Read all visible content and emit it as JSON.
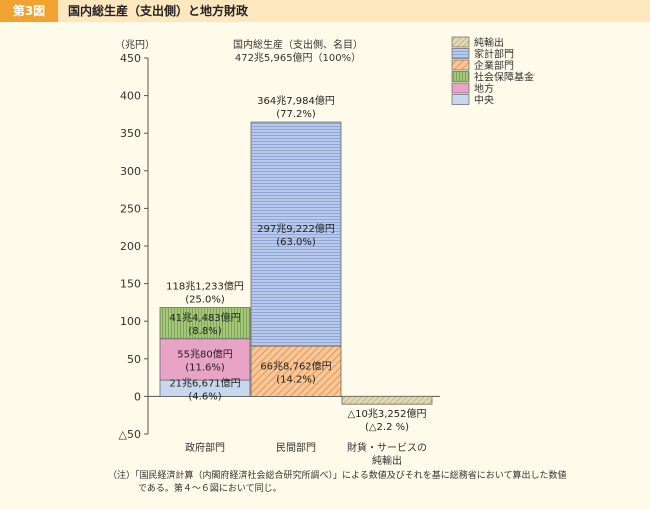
{
  "header": {
    "badge": "第3図",
    "title": "国内総生産（支出側）と地方財政"
  },
  "footnote": {
    "line1": "（注）「国民経済計算（内閣府経済社会総合研究所調べ）」による数値及びそれを基に総務省において算出した数値",
    "line2": "である。第４～６図において同じ。"
  },
  "chart_data": {
    "type": "bar",
    "stacked": true,
    "unit_label": "（兆円）",
    "ylim": [
      -50,
      450
    ],
    "yticks": [
      450,
      400,
      350,
      300,
      250,
      200,
      150,
      100,
      50,
      0,
      -50
    ],
    "ytick_labels": [
      "450",
      "400",
      "350",
      "300",
      "250",
      "200",
      "150",
      "100",
      "50",
      "0",
      "△50"
    ],
    "categories": [
      {
        "label": "政府部門",
        "label2": ""
      },
      {
        "label": "民間部門",
        "label2": ""
      },
      {
        "label": "財貨・サービスの",
        "label2": "純輸出"
      }
    ],
    "series": [
      {
        "name": "中央",
        "color": "#c8d6ee",
        "pattern": "solid",
        "values": [
          21.6671,
          0,
          0
        ],
        "labels": [
          [
            "21兆6,671億円",
            "(4.6%)"
          ],
          null,
          null
        ]
      },
      {
        "name": "地方",
        "color": "#e9a3c6",
        "pattern": "solid",
        "values": [
          55.008,
          0,
          0
        ],
        "labels": [
          [
            "55兆80億円",
            "(11.6%)"
          ],
          null,
          null
        ]
      },
      {
        "name": "社会保障基金",
        "color": "#a5c77b",
        "pattern": "vertical",
        "values": [
          41.4483,
          0,
          0
        ],
        "labels": [
          [
            "41兆4,483億円",
            "(8.8%)"
          ],
          null,
          null
        ]
      },
      {
        "name": "企業部門",
        "color": "#f2b37a",
        "pattern": "diagonal",
        "values": [
          0,
          66.8762,
          0
        ],
        "labels": [
          null,
          [
            "66兆8,762億円",
            "(14.2%)"
          ],
          null
        ]
      },
      {
        "name": "家計部門",
        "color": "#a9bde3",
        "pattern": "horizontal",
        "values": [
          0,
          297.9222,
          0
        ],
        "labels": [
          null,
          [
            "297兆9,222億円",
            "(63.0%)"
          ],
          null
        ]
      },
      {
        "name": "純輸出",
        "color": "#d8cca0",
        "pattern": "diagonal2",
        "values": [
          0,
          0,
          -10.3252
        ],
        "labels": [
          null,
          null,
          null
        ]
      }
    ],
    "totals": [
      [
        "118兆1,233億円",
        "(25.0%)"
      ],
      [
        "364兆7,984億円",
        "(77.2%)"
      ],
      [
        "△10兆3,252億円",
        "(△2.2 %)"
      ]
    ],
    "gdp_title": "国内総生産（支出側、名目）",
    "gdp_value": "472兆5,965億円（100%）",
    "legend": [
      "純輸出",
      "家計部門",
      "企業部門",
      "社会保障基金",
      "地方",
      "中央"
    ]
  }
}
